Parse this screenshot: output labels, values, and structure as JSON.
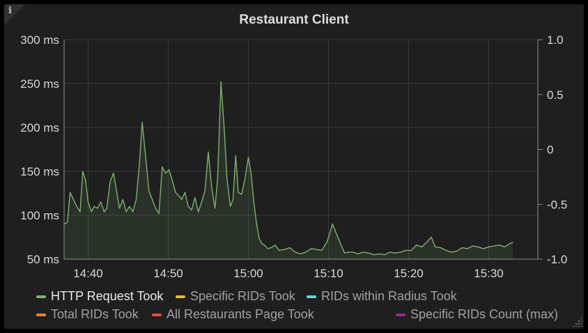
{
  "panel": {
    "info_icon": "i",
    "title": "Restaurant Client"
  },
  "chart_data": {
    "type": "area",
    "title": "Restaurant Client",
    "x_ticks": [
      "14:40",
      "14:50",
      "15:00",
      "15:10",
      "15:20",
      "15:30"
    ],
    "y_left": {
      "unit": "ms",
      "ticks": [
        "300 ms",
        "250 ms",
        "200 ms",
        "150 ms",
        "100 ms",
        "50 ms"
      ],
      "ylim": [
        50,
        300
      ]
    },
    "y_right": {
      "ticks": [
        "1.0",
        "0.5",
        "0",
        "-0.5",
        "-1.0"
      ],
      "ylim": [
        -1.0,
        1.0
      ]
    },
    "grid": true,
    "legend_position": "bottom",
    "series": [
      {
        "name": "HTTP Request Took",
        "color": "#7eb26d",
        "axis": "left",
        "x": [
          "14:37:00",
          "14:37:25",
          "14:37:45",
          "14:38:10",
          "14:38:35",
          "14:39:00",
          "14:39:20",
          "14:39:40",
          "14:40:00",
          "14:40:25",
          "14:40:45",
          "14:41:10",
          "14:41:35",
          "14:42:00",
          "14:42:20",
          "14:42:45",
          "14:43:10",
          "14:43:35",
          "14:43:55",
          "14:44:20",
          "14:44:45",
          "14:45:10",
          "14:45:35",
          "14:46:00",
          "14:46:25",
          "14:46:45",
          "14:47:10",
          "14:47:35",
          "14:48:00",
          "14:48:25",
          "14:48:50",
          "14:49:15",
          "14:49:40",
          "14:50:05",
          "14:50:30",
          "14:50:55",
          "14:51:20",
          "14:51:40",
          "14:52:05",
          "14:52:30",
          "14:52:55",
          "14:53:20",
          "14:53:45",
          "14:54:10",
          "14:54:35",
          "14:55:00",
          "14:55:25",
          "14:55:50",
          "14:56:10",
          "14:56:35",
          "14:57:00",
          "14:57:20",
          "14:57:45",
          "14:58:05",
          "14:58:25",
          "14:58:45",
          "14:59:10",
          "14:59:35",
          "15:00:00",
          "15:00:20",
          "15:00:40",
          "15:01:00",
          "15:01:20",
          "15:01:40",
          "15:02:00",
          "15:02:25",
          "15:02:50",
          "15:03:20",
          "15:03:50",
          "15:04:30",
          "15:05:10",
          "15:05:50",
          "15:06:30",
          "15:07:10",
          "15:07:50",
          "15:08:30",
          "15:09:10",
          "15:09:50",
          "15:10:30",
          "15:11:10",
          "15:11:40",
          "15:12:00",
          "15:12:30",
          "15:13:00",
          "15:13:40",
          "15:14:20",
          "15:15:00",
          "15:15:40",
          "15:16:20",
          "15:17:00",
          "15:17:40",
          "15:18:20",
          "15:19:00",
          "15:19:40",
          "15:20:20",
          "15:21:00",
          "15:21:40",
          "15:22:20",
          "15:22:50",
          "15:23:20",
          "15:24:00",
          "15:24:40",
          "15:25:20",
          "15:26:00",
          "15:26:40",
          "15:27:20",
          "15:28:00",
          "15:28:40",
          "15:29:20",
          "15:30:00",
          "15:30:40",
          "15:31:20",
          "15:32:00",
          "15:32:40",
          "15:33:00"
        ],
        "values": [
          90,
          92,
          126,
          118,
          110,
          104,
          150,
          140,
          115,
          104,
          110,
          108,
          115,
          104,
          108,
          138,
          148,
          126,
          108,
          118,
          104,
          110,
          104,
          118,
          160,
          206,
          168,
          128,
          118,
          108,
          102,
          155,
          148,
          152,
          140,
          126,
          122,
          118,
          126,
          110,
          106,
          120,
          104,
          115,
          128,
          172,
          132,
          108,
          143,
          252,
          196,
          142,
          110,
          118,
          168,
          126,
          124,
          142,
          166,
          148,
          116,
          92,
          74,
          68,
          66,
          62,
          63,
          66,
          60,
          61,
          63,
          58,
          56,
          58,
          62,
          61,
          60,
          70,
          90,
          75,
          64,
          57,
          58,
          58,
          56,
          58,
          57,
          55,
          56,
          55,
          58,
          57,
          58,
          60,
          60,
          66,
          64,
          70,
          75,
          64,
          63,
          60,
          58,
          59,
          63,
          62,
          65,
          64,
          62,
          64,
          65,
          66,
          64,
          68,
          69
        ]
      },
      {
        "name": "Specific RIDs Took",
        "color": "#eab839",
        "axis": "left",
        "values": []
      },
      {
        "name": "RIDs within Radius Took",
        "color": "#6ed0e0",
        "axis": "left",
        "values": []
      },
      {
        "name": "Total RIDs Took",
        "color": "#ef843c",
        "axis": "left",
        "values": []
      },
      {
        "name": "All Restaurants Page Took",
        "color": "#e24d42",
        "axis": "left",
        "values": []
      },
      {
        "name": "Specific RIDs Count (max)",
        "color": "#962d82",
        "axis": "right",
        "values": []
      }
    ]
  }
}
